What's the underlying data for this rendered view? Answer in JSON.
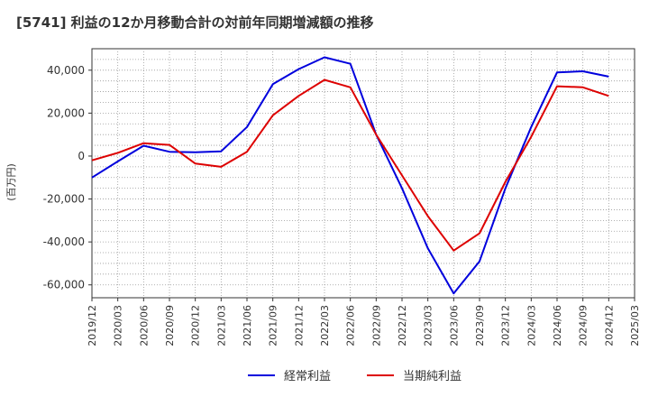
{
  "chart_data": {
    "type": "line",
    "title": "[5741]  利益の12か月移動合計の対前年同期増減額の推移",
    "xlabel": "",
    "ylabel": "(百万円)",
    "ylim": [
      -66000,
      50000
    ],
    "yticks": [
      40000,
      20000,
      0,
      -20000,
      -40000,
      -60000
    ],
    "ytick_labels": [
      "40,000",
      "20,000",
      "0",
      "-20,000",
      "-40,000",
      "-60,000"
    ],
    "categories": [
      "2019/12",
      "2020/03",
      "2020/06",
      "2020/09",
      "2020/12",
      "2021/03",
      "2021/06",
      "2021/09",
      "2021/12",
      "2022/03",
      "2022/06",
      "2022/09",
      "2022/12",
      "2023/03",
      "2023/06",
      "2023/09",
      "2023/12",
      "2024/03",
      "2024/06",
      "2024/09",
      "2024/12",
      "2025/03"
    ],
    "grid": true,
    "legend_position": "bottom",
    "series": [
      {
        "name": "経常利益",
        "color": "#0000dd",
        "values": [
          -10000,
          -2500,
          4800,
          2000,
          1800,
          2200,
          13500,
          33500,
          40500,
          46000,
          43000,
          10000,
          -15000,
          -43000,
          -64000,
          -49000,
          -15000,
          13500,
          39000,
          39500,
          37000,
          null
        ]
      },
      {
        "name": "当期純利益",
        "color": "#dd0000",
        "values": [
          -2000,
          1500,
          6000,
          5200,
          -3500,
          -5000,
          2000,
          19000,
          28000,
          35500,
          32000,
          10000,
          -9000,
          -28000,
          -44000,
          -36000,
          -12000,
          9000,
          32500,
          32000,
          28000,
          null
        ]
      }
    ]
  }
}
